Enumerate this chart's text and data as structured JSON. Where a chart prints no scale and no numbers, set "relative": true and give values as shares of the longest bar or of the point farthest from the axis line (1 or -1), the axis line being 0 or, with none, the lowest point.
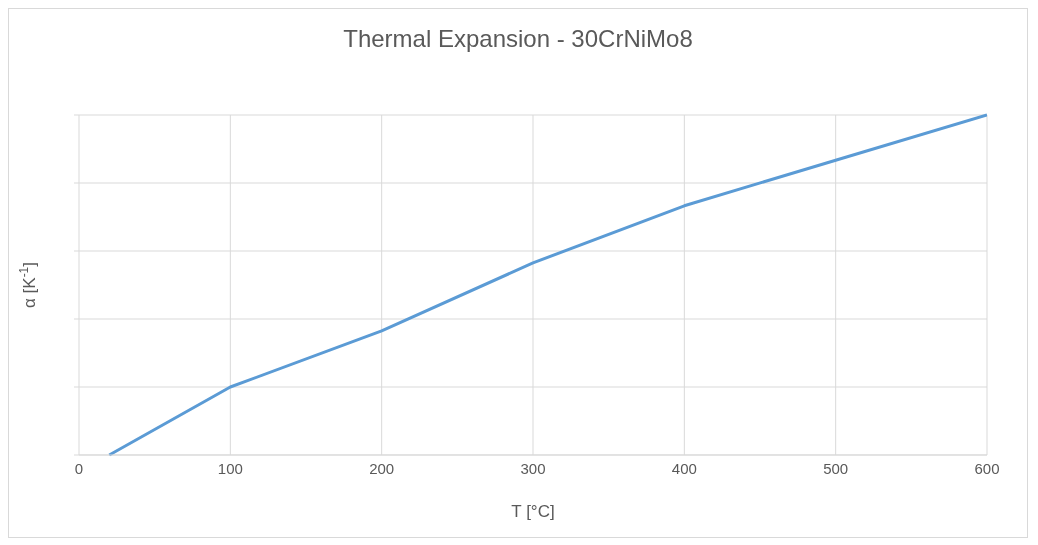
{
  "chart_data": {
    "type": "line",
    "title": "Thermal Expansion - 30CrNiMo8",
    "xlabel": "T [°C]",
    "ylabel": "α [K$^{-1}$]",
    "relative": true,
    "x": [
      20,
      100,
      200,
      300,
      400,
      500,
      600
    ],
    "series": [
      {
        "color": "#5b9bd5",
        "values": [
          0,
          0.2,
          0.365,
          0.565,
          0.733,
          0.867,
          1
        ]
      }
    ],
    "xlim": [
      0,
      600
    ],
    "xticks": [
      0,
      100,
      200,
      300,
      400,
      500,
      600
    ],
    "grid": true,
    "legend": false,
    "marker": "none",
    "line_style": "solid"
  }
}
